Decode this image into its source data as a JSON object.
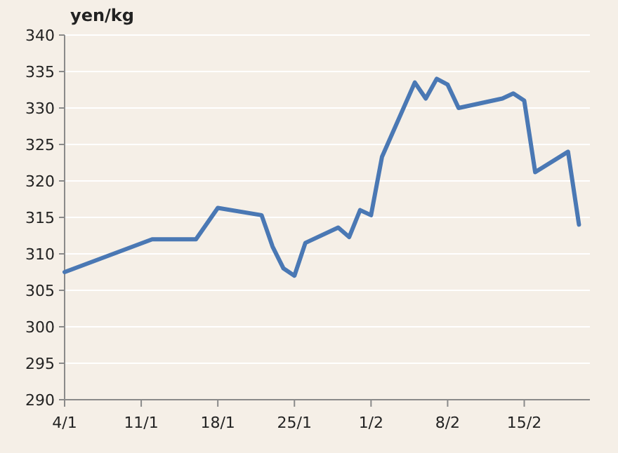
{
  "chart_data": {
    "type": "line",
    "ylabel": "yen/kg",
    "x": [
      "--01-04",
      "--01-12",
      "--01-16",
      "--01-18",
      "--01-22",
      "--01-23",
      "--01-24",
      "--01-25",
      "--01-26",
      "--01-29",
      "--01-30",
      "--01-31",
      "--02-01",
      "--02-02",
      "--02-05",
      "--02-06",
      "--02-07",
      "--02-08",
      "--02-09",
      "--02-13",
      "--02-14",
      "--02-15",
      "--02-16",
      "--02-19",
      "--02-20"
    ],
    "series": [
      {
        "color": "#4a78b4",
        "values": [
          307.5,
          312,
          312,
          316.3,
          315.3,
          311,
          308,
          307,
          311.5,
          313.6,
          312.3,
          316,
          315.3,
          323.3,
          333.5,
          331.3,
          334,
          333.2,
          330,
          331.3,
          332,
          331,
          321.2,
          324,
          314
        ]
      }
    ],
    "xlim": [
      "--01-04",
      "--02-21"
    ],
    "xticks": [
      {
        "value": "--01-04",
        "label": "4/1"
      },
      {
        "value": "--01-11",
        "label": "11/1"
      },
      {
        "value": "--01-18",
        "label": "18/1"
      },
      {
        "value": "--01-25",
        "label": "25/1"
      },
      {
        "value": "--02-01",
        "label": "1/2"
      },
      {
        "value": "--02-08",
        "label": "8/2"
      },
      {
        "value": "--02-15",
        "label": "15/2"
      }
    ],
    "ylim": [
      290,
      340
    ],
    "yticks": [
      290,
      295,
      300,
      305,
      310,
      315,
      320,
      325,
      330,
      335,
      340
    ],
    "grid": "y",
    "marker": "none",
    "line_style": "solid"
  }
}
